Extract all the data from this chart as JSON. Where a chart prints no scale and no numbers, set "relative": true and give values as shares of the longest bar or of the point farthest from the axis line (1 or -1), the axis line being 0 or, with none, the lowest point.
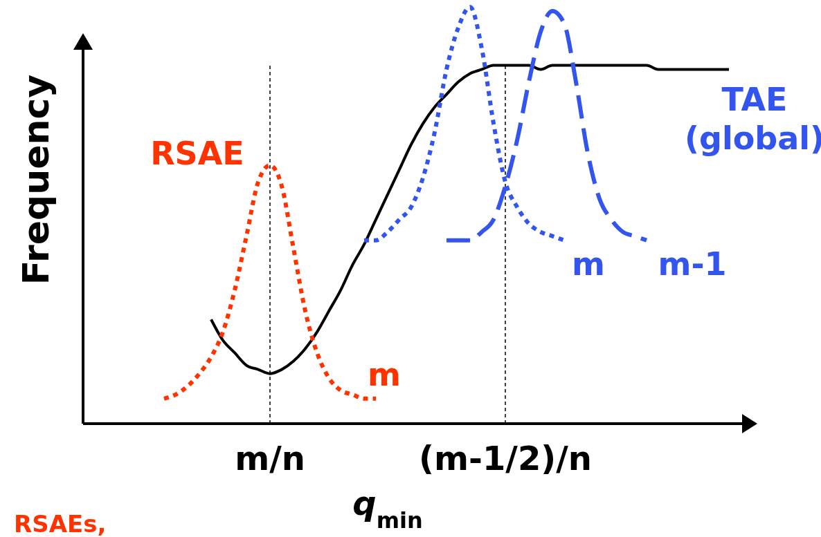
{
  "chart_data": {
    "type": "line",
    "relative": true,
    "ylabel": "Frequency",
    "xlabel": "q$_{min}$",
    "categories": [
      null,
      null,
      null,
      null,
      null,
      null,
      null,
      null,
      null,
      null,
      null,
      null,
      null,
      null,
      null,
      null,
      "m/n",
      null,
      null,
      null,
      null,
      null,
      null,
      null,
      null,
      null,
      null,
      null,
      null,
      null,
      null,
      null,
      null,
      null,
      null,
      null,
      "(m-1/2)/n",
      null,
      null,
      null,
      null,
      null,
      null,
      null,
      null,
      null,
      null,
      null,
      null,
      null,
      null,
      null,
      null,
      null,
      null,
      null,
      null
    ],
    "series": [
      {
        "color": "#000000",
        "line_style": "solid",
        "values": [
          null,
          null,
          null,
          null,
          null,
          null,
          null,
          null,
          null,
          null,
          null,
          0.25,
          0.2,
          0.17,
          0.14,
          0.13,
          0.12,
          0.13,
          0.15,
          0.18,
          0.22,
          0.27,
          0.32,
          0.38,
          0.43,
          0.49,
          0.55,
          0.61,
          0.67,
          0.72,
          0.76,
          0.79,
          0.82,
          0.84,
          0.85,
          0.86,
          0.86,
          0.86,
          0.86,
          0.85,
          0.86,
          0.86,
          0.86,
          0.86,
          0.86,
          0.86,
          0.86,
          0.86,
          0.86,
          0.85,
          0.85,
          0.85,
          0.85,
          0.85,
          0.85,
          0.85,
          null
        ]
      },
      {
        "name": "m",
        "color": "#ff3300",
        "line_style": "dotted",
        "values": [
          null,
          null,
          null,
          null,
          null,
          null,
          null,
          0.06,
          0.07,
          0.09,
          0.12,
          0.16,
          0.22,
          0.32,
          0.45,
          0.58,
          0.62,
          0.57,
          0.42,
          0.27,
          0.17,
          0.11,
          0.08,
          0.07,
          0.06,
          0.06,
          null,
          null,
          null,
          null,
          null,
          null,
          null,
          null,
          null,
          null,
          null,
          null,
          null,
          null,
          null,
          null,
          null,
          null,
          null,
          null,
          null,
          null,
          null,
          null,
          null,
          null,
          null,
          null,
          null,
          null,
          null
        ]
      },
      {
        "name": "m",
        "color": "#3355ee",
        "line_style": "dotted",
        "values": [
          null,
          null,
          null,
          null,
          null,
          null,
          null,
          null,
          null,
          null,
          null,
          null,
          null,
          null,
          null,
          null,
          null,
          null,
          null,
          null,
          null,
          null,
          null,
          null,
          0.44,
          0.44,
          0.46,
          0.49,
          0.52,
          0.59,
          0.7,
          0.85,
          0.95,
          1.0,
          0.9,
          0.72,
          0.58,
          0.52,
          0.48,
          0.46,
          0.45,
          0.44,
          null,
          null,
          null,
          null,
          null,
          null,
          null,
          null,
          null,
          null,
          null,
          null,
          null,
          null,
          null
        ]
      },
      {
        "name": "m-1",
        "color": "#3355ee",
        "line_style": "dashed",
        "values": [
          null,
          null,
          null,
          null,
          null,
          null,
          null,
          null,
          null,
          null,
          null,
          null,
          null,
          null,
          null,
          null,
          null,
          null,
          null,
          null,
          null,
          null,
          null,
          null,
          null,
          null,
          null,
          null,
          null,
          null,
          null,
          0.44,
          0.44,
          0.44,
          0.46,
          0.49,
          0.57,
          0.68,
          0.82,
          0.94,
          0.99,
          0.96,
          0.82,
          0.65,
          0.54,
          0.49,
          0.46,
          0.45,
          0.44,
          null,
          null,
          null,
          null,
          null,
          null,
          null,
          null
        ]
      }
    ],
    "ref_lines": [
      {
        "axis": "x",
        "value": "m/n",
        "line_style": "dashed",
        "color": "#000000"
      },
      {
        "axis": "x",
        "value": "(m-1/2)/n",
        "line_style": "dashed",
        "color": "#000000"
      }
    ],
    "annotations": [
      "RSAE",
      "TAE (global)",
      "RSAEs,"
    ]
  }
}
